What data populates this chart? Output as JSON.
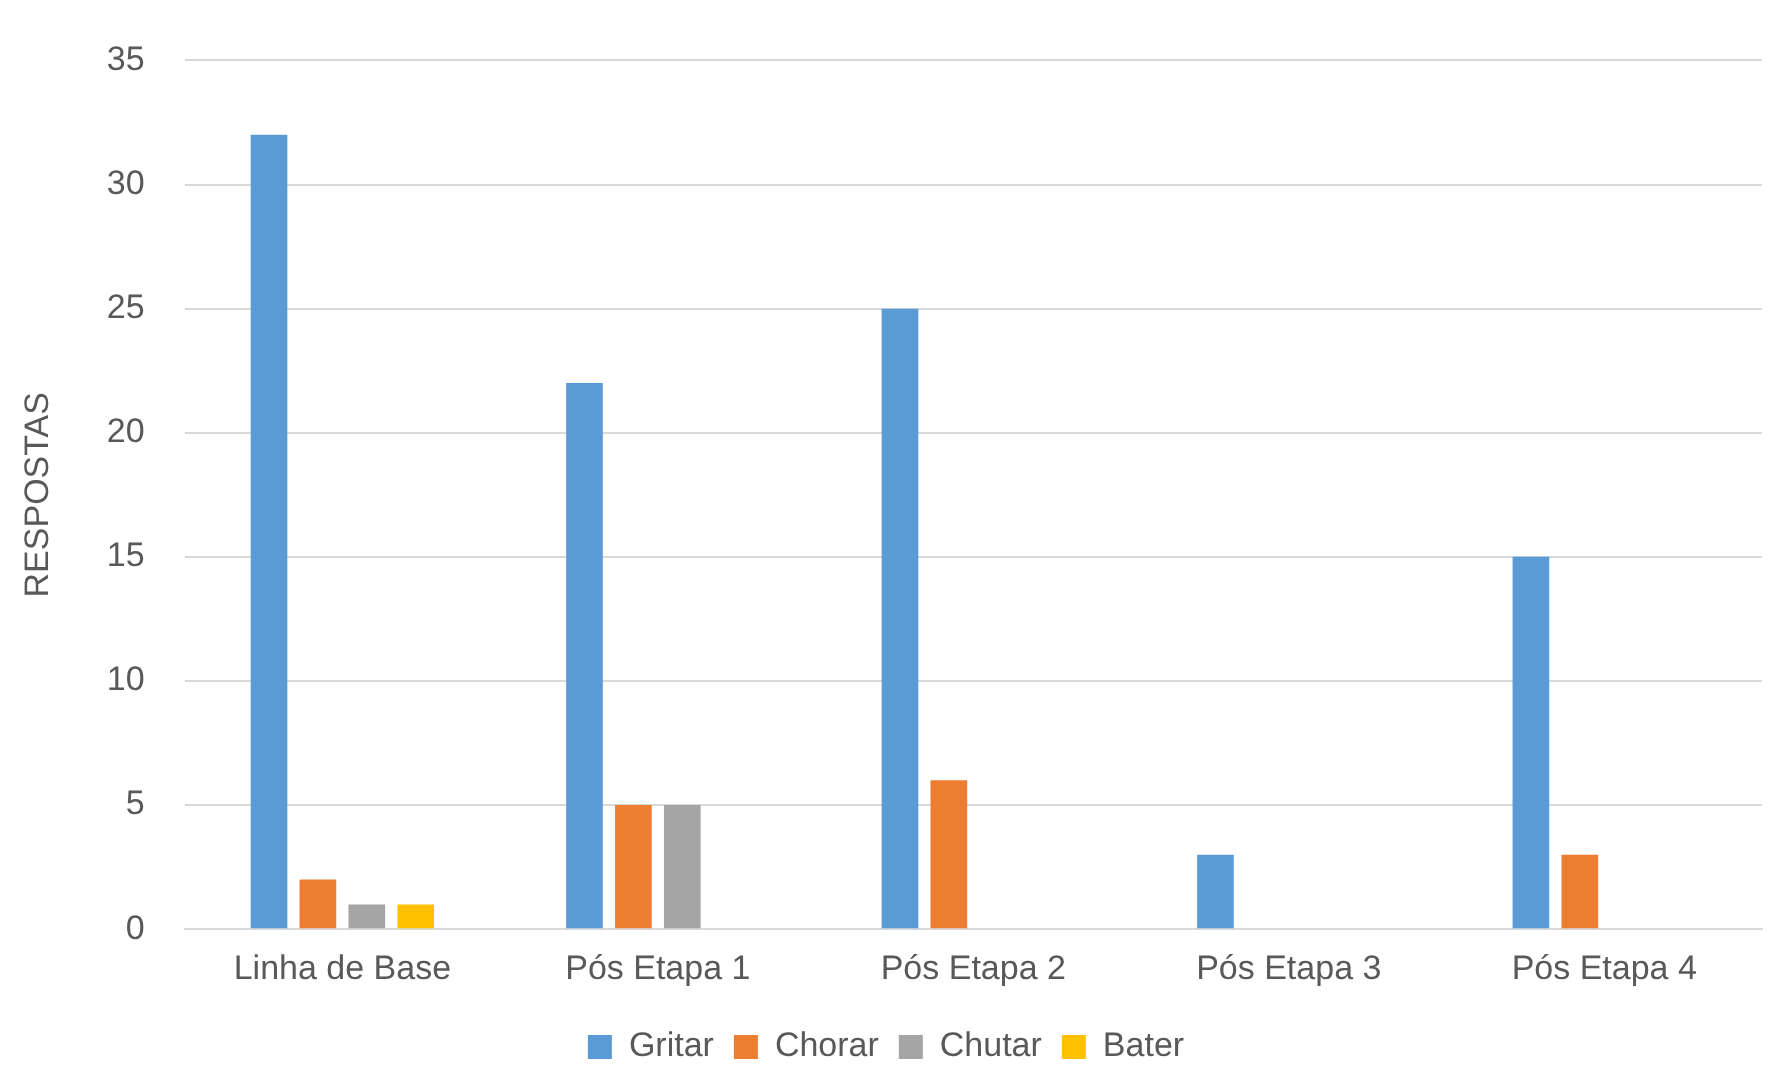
{
  "chart_data": {
    "type": "bar",
    "ylabel": "RESPOSTAS",
    "categories": [
      "Linha de Base",
      "Pós Etapa 1",
      "Pós Etapa 2",
      "Pós Etapa 3",
      "Pós Etapa 4"
    ],
    "series": [
      {
        "name": "Gritar",
        "color": "#5b9bd5",
        "values": [
          32,
          22,
          25,
          3,
          15
        ]
      },
      {
        "name": "Chorar",
        "color": "#ed7d31",
        "values": [
          2,
          5,
          6,
          0,
          3
        ]
      },
      {
        "name": "Chutar",
        "color": "#a5a5a5",
        "values": [
          1,
          5,
          0,
          0,
          0
        ]
      },
      {
        "name": "Bater",
        "color": "#ffc000",
        "values": [
          1,
          0,
          0,
          0,
          0
        ]
      }
    ],
    "ylim": [
      0,
      35
    ],
    "yticks": [
      0,
      5,
      10,
      15,
      20,
      25,
      30,
      35
    ],
    "grid": "y",
    "legend": "bottom"
  }
}
